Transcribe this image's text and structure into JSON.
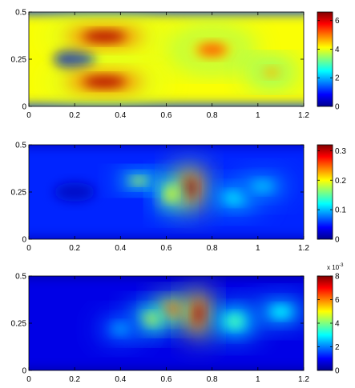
{
  "chart_data": [
    {
      "type": "heatmap",
      "title": "",
      "xlabel": "",
      "ylabel": "",
      "xlim": [
        0,
        1.2
      ],
      "ylim": [
        0,
        0.5
      ],
      "x_ticks": [
        "0",
        "0.2",
        "0.4",
        "0.6",
        "0.8",
        "1",
        "1.2"
      ],
      "y_ticks": [
        "0",
        "0.25",
        "0.5"
      ],
      "colorbar": {
        "range": [
          0,
          6.6
        ],
        "ticks": [
          "0",
          "2",
          "4",
          "6"
        ],
        "tick_values": [
          0,
          2,
          4,
          6
        ],
        "exponent": ""
      },
      "colormap": "jet",
      "features": [
        {
          "kind": "obstacle",
          "x": 0.2,
          "y": 0.25,
          "rx": 0.09,
          "ry": 0.05
        },
        {
          "kind": "band",
          "x": 0.33,
          "y": 0.37,
          "rx": 0.17,
          "ry": 0.05,
          "value": 6.3
        },
        {
          "kind": "band",
          "x": 0.33,
          "y": 0.13,
          "rx": 0.17,
          "ry": 0.05,
          "value": 6.3
        },
        {
          "kind": "blob",
          "x": 0.8,
          "y": 0.3,
          "rx": 0.12,
          "ry": 0.06,
          "value": 5.2
        },
        {
          "kind": "blob",
          "x": 1.06,
          "y": 0.18,
          "rx": 0.07,
          "ry": 0.04,
          "value": 4.6
        }
      ]
    },
    {
      "type": "heatmap",
      "title": "",
      "xlabel": "",
      "ylabel": "",
      "xlim": [
        0,
        1.2
      ],
      "ylim": [
        0,
        0.5
      ],
      "x_ticks": [
        "0",
        "0.2",
        "0.4",
        "0.6",
        "0.8",
        "1",
        "1.2"
      ],
      "y_ticks": [
        "0",
        "0.25",
        "0.5"
      ],
      "colorbar": {
        "range": [
          0,
          0.32
        ],
        "ticks": [
          "0",
          "0.1",
          "0.2",
          "0.3"
        ],
        "tick_values": [
          0,
          0.1,
          0.2,
          0.3
        ],
        "exponent": ""
      },
      "colormap": "jet",
      "features": [
        {
          "kind": "obstacle",
          "x": 0.2,
          "y": 0.25,
          "rx": 0.09,
          "ry": 0.05
        },
        {
          "kind": "blob",
          "x": 0.7,
          "y": 0.27,
          "rx": 0.05,
          "ry": 0.08,
          "value": 0.31
        },
        {
          "kind": "blob",
          "x": 0.62,
          "y": 0.24,
          "rx": 0.04,
          "ry": 0.06,
          "value": 0.2
        },
        {
          "kind": "blob",
          "x": 0.48,
          "y": 0.31,
          "rx": 0.06,
          "ry": 0.03,
          "value": 0.18
        },
        {
          "kind": "blob",
          "x": 0.9,
          "y": 0.22,
          "rx": 0.08,
          "ry": 0.05,
          "value": 0.12
        },
        {
          "kind": "blob",
          "x": 1.02,
          "y": 0.28,
          "rx": 0.09,
          "ry": 0.05,
          "value": 0.1
        }
      ]
    },
    {
      "type": "heatmap",
      "title": "",
      "xlabel": "",
      "ylabel": "",
      "xlim": [
        0,
        1.2
      ],
      "ylim": [
        0,
        0.5
      ],
      "x_ticks": [
        "0",
        "0.2",
        "0.4",
        "0.6",
        "0.8",
        "1",
        "1.2"
      ],
      "y_ticks": [
        "0",
        "0.25",
        "0.5"
      ],
      "colorbar": {
        "range": [
          0,
          8
        ],
        "ticks": [
          "0",
          "2",
          "4",
          "6",
          "8"
        ],
        "tick_values": [
          0,
          2,
          4,
          6,
          8
        ],
        "exponent": "x 10",
        "exponent_power": "-3"
      },
      "colormap": "jet",
      "features": [
        {
          "kind": "blob",
          "x": 0.74,
          "y": 0.3,
          "rx": 0.04,
          "ry": 0.09,
          "value": 7.6
        },
        {
          "kind": "blob",
          "x": 0.62,
          "y": 0.32,
          "rx": 0.05,
          "ry": 0.05,
          "value": 6.5
        },
        {
          "kind": "blob",
          "x": 0.53,
          "y": 0.27,
          "rx": 0.06,
          "ry": 0.05,
          "value": 4.5
        },
        {
          "kind": "blob",
          "x": 0.9,
          "y": 0.26,
          "rx": 0.07,
          "ry": 0.06,
          "value": 3.6
        },
        {
          "kind": "blob",
          "x": 1.1,
          "y": 0.31,
          "rx": 0.08,
          "ry": 0.05,
          "value": 3.0
        },
        {
          "kind": "blob",
          "x": 0.4,
          "y": 0.22,
          "rx": 0.07,
          "ry": 0.05,
          "value": 2.2
        }
      ]
    }
  ]
}
